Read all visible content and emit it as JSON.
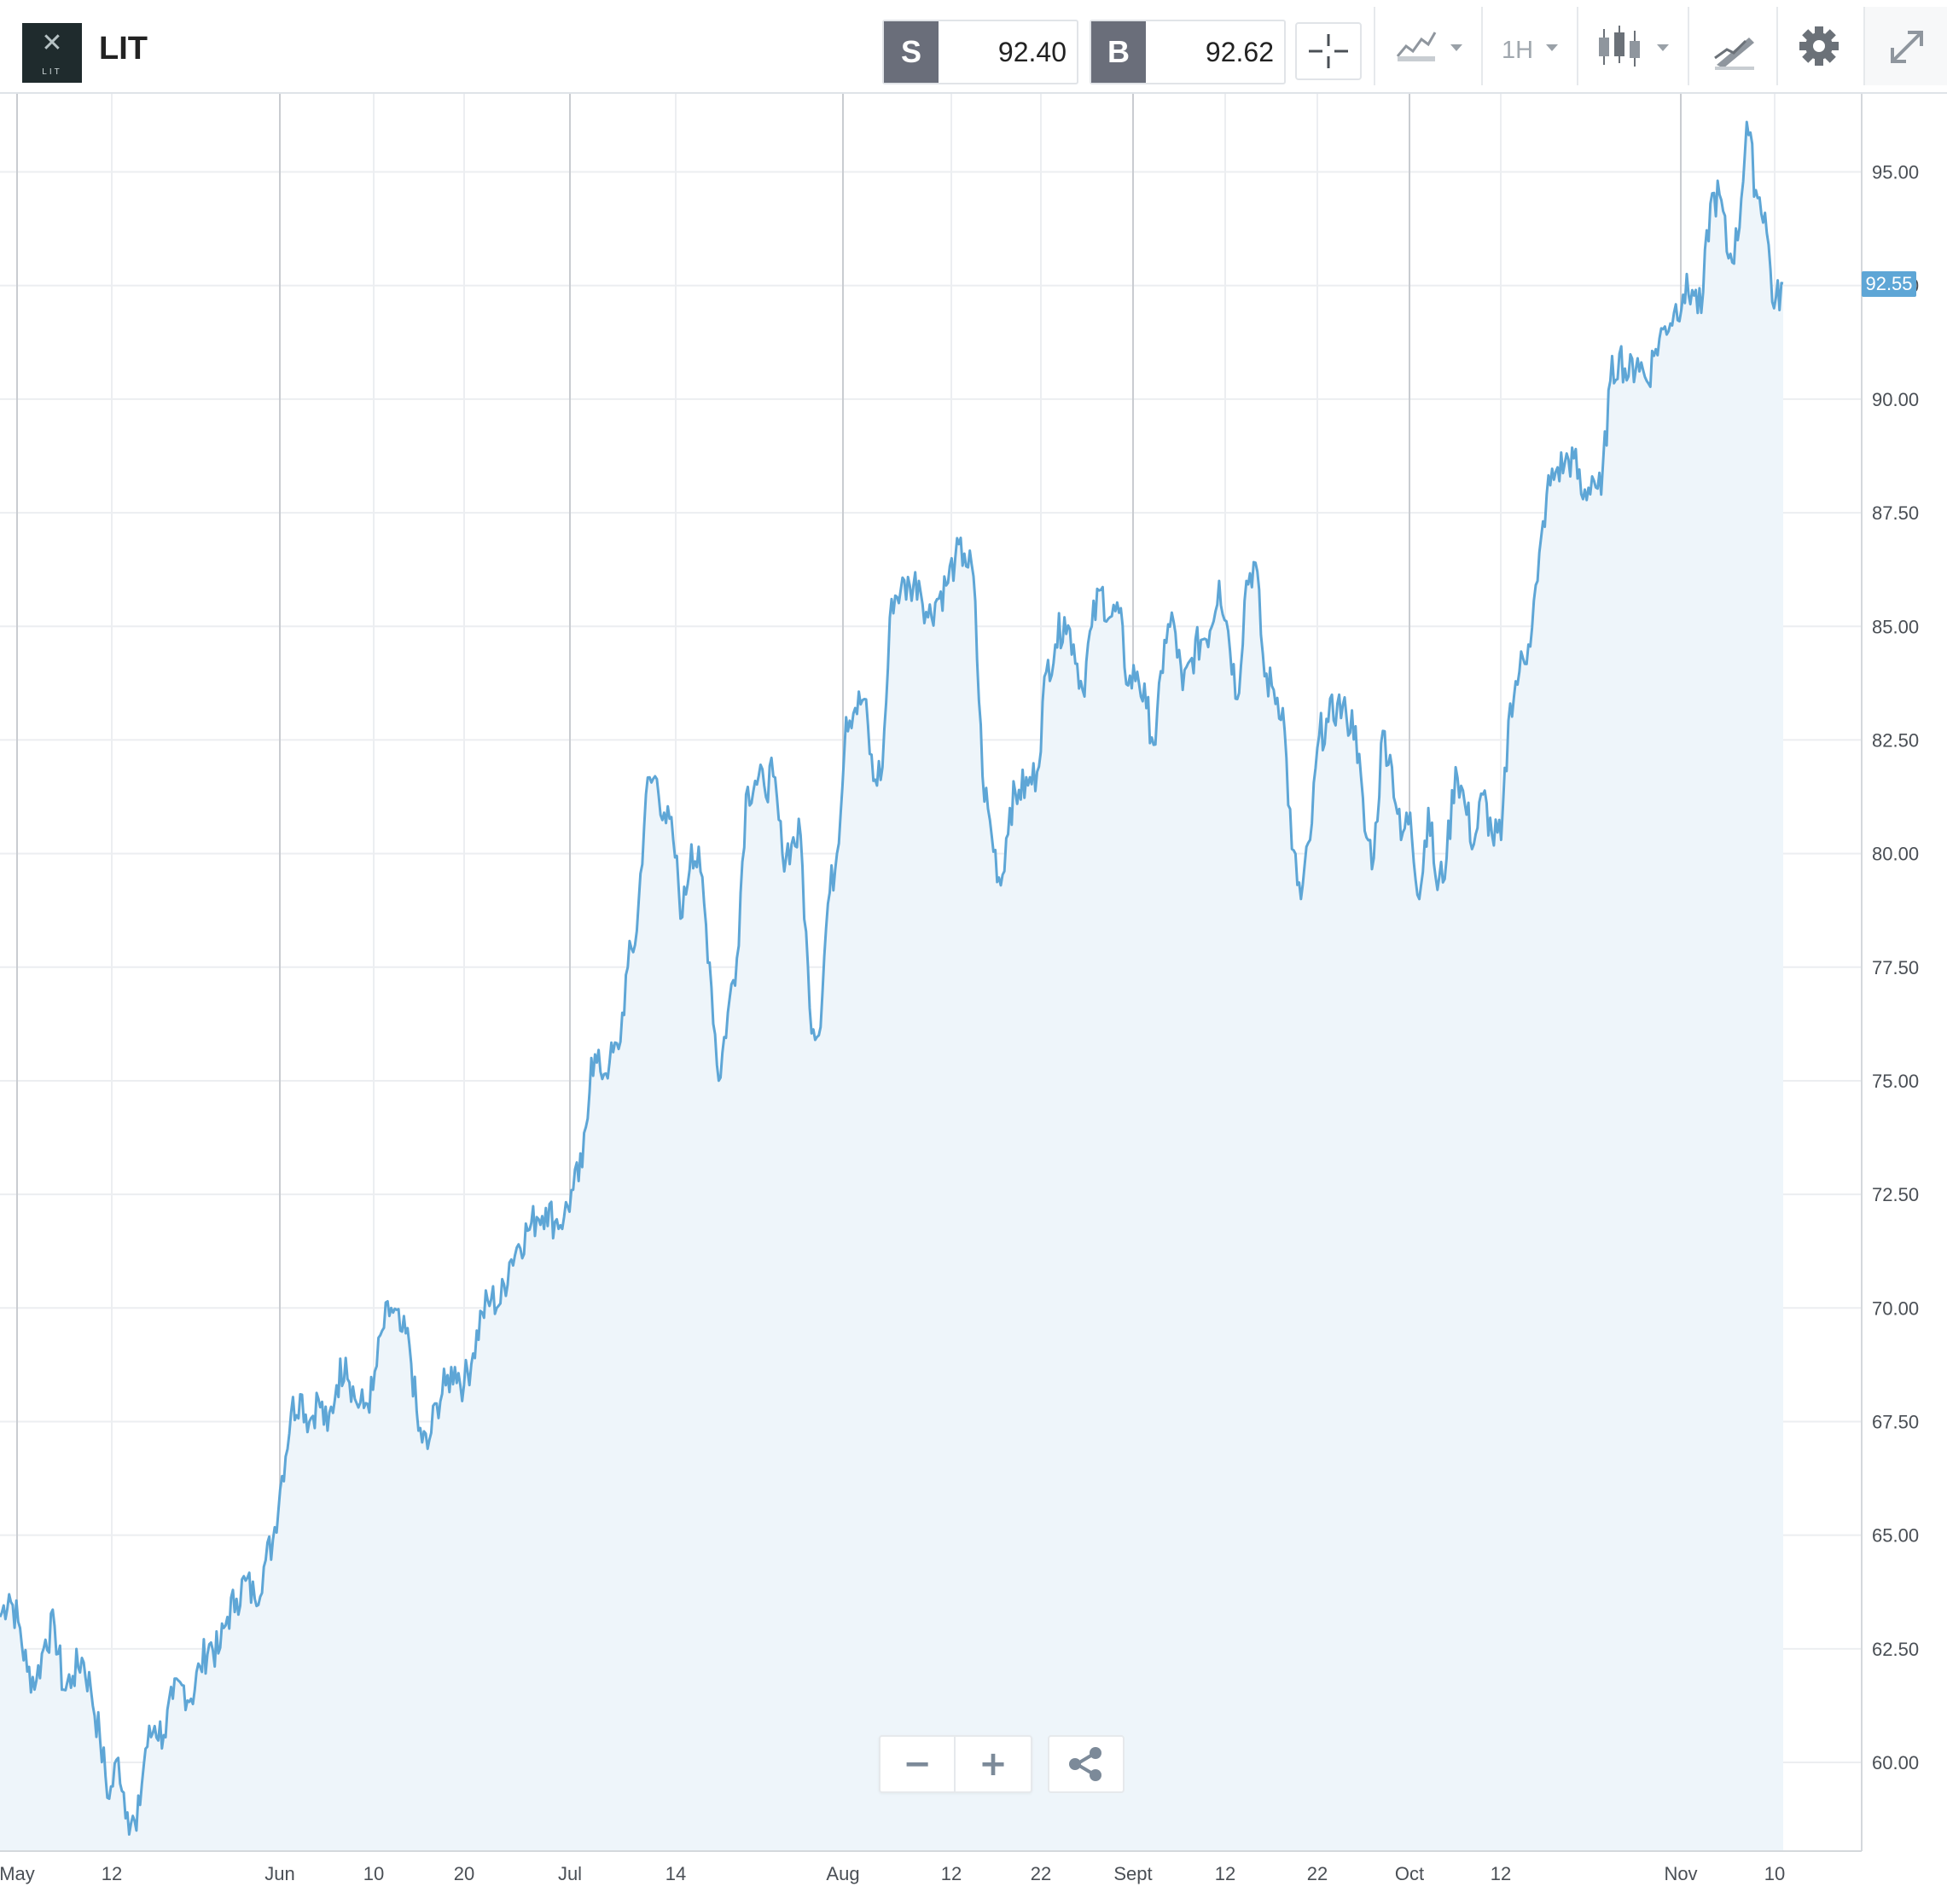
{
  "header": {
    "logo_text": "LIT",
    "symbol": "LIT",
    "sell": {
      "label": "S",
      "price": "92.40"
    },
    "buy": {
      "label": "B",
      "price": "92.62"
    },
    "interval": "1H",
    "icons": [
      "crosshair-icon",
      "line-chart-icon",
      "candlestick-icon",
      "drawing-tool-icon",
      "gear-icon",
      "expand-icon"
    ]
  },
  "chart": {
    "last_price": "92.55",
    "colors": {
      "line": "#5ea6d6",
      "fill": "#eef5fa",
      "grid": "#eceef1",
      "vgrid_major": "#c9ccd1",
      "tag": "#5ea6d6"
    }
  },
  "controls": {
    "zoom_out": "−",
    "zoom_in": "+"
  },
  "chart_data": {
    "type": "area",
    "title": "",
    "series": [
      {
        "name": "",
        "values": []
      }
    ],
    "y_ticks": [
      "60.00",
      "62.50",
      "65.00",
      "67.50",
      "70.00",
      "72.50",
      "75.00",
      "77.50",
      "80.00",
      "82.50",
      "85.00",
      "87.50",
      "90.00",
      "92.50",
      "95.00"
    ],
    "x_ticks": [
      "May",
      "12",
      "Jun",
      "10",
      "20",
      "Jul",
      "14",
      "Aug",
      "12",
      "22",
      "Sept",
      "12",
      "22",
      "Oct",
      "12",
      "Nov",
      "10"
    ],
    "ylim": [
      58.0,
      96.5
    ],
    "points": [
      [
        "Apr 30",
        63.2
      ],
      [
        "May 1",
        63.7
      ],
      [
        "May 2",
        63.1
      ],
      [
        "May 3",
        62.0
      ],
      [
        "May 4",
        61.8
      ],
      [
        "May 5",
        62.7
      ],
      [
        "May 6",
        63.0
      ],
      [
        "May 7",
        61.6
      ],
      [
        "May 8",
        61.9
      ],
      [
        "May 9",
        62.3
      ],
      [
        "May 10",
        61.6
      ],
      [
        "May 11",
        60.5
      ],
      [
        "May 12",
        59.2
      ],
      [
        "May 13",
        60.1
      ],
      [
        "May 14",
        58.9
      ],
      [
        "May 15",
        58.5
      ],
      [
        "May 16",
        60.3
      ],
      [
        "May 17",
        60.8
      ],
      [
        "May 18",
        60.6
      ],
      [
        "May 19",
        61.4
      ],
      [
        "May 20",
        61.7
      ],
      [
        "May 21",
        61.4
      ],
      [
        "May 22",
        62.1
      ],
      [
        "May 23",
        62.6
      ],
      [
        "May 24",
        62.4
      ],
      [
        "May 25",
        63.2
      ],
      [
        "May 26",
        63.6
      ],
      [
        "May 27",
        64.0
      ],
      [
        "May 28",
        63.6
      ],
      [
        "May 29",
        64.3
      ],
      [
        "May 30",
        64.9
      ],
      [
        "May 31",
        66.3
      ],
      [
        "Jun 1",
        67.7
      ],
      [
        "Jun 2",
        68.1
      ],
      [
        "Jun 3",
        67.5
      ],
      [
        "Jun 4",
        68.0
      ],
      [
        "Jun 5",
        67.3
      ],
      [
        "Jun 6",
        68.3
      ],
      [
        "Jun 7",
        68.9
      ],
      [
        "Jun 8",
        68.0
      ],
      [
        "Jun 9",
        67.8
      ],
      [
        "Jun 10",
        68.2
      ],
      [
        "Jun 11",
        69.5
      ],
      [
        "Jun 12",
        70.0
      ],
      [
        "Jun 13",
        69.5
      ],
      [
        "Jun 14",
        69.2
      ],
      [
        "Jun 15",
        67.3
      ],
      [
        "Jun 16",
        66.9
      ],
      [
        "Jun 17",
        67.9
      ],
      [
        "Jun 18",
        68.3
      ],
      [
        "Jun 19",
        68.7
      ],
      [
        "Jun 20",
        68.3
      ],
      [
        "Jun 21",
        69.0
      ],
      [
        "Jun 22",
        69.9
      ],
      [
        "Jun 23",
        70.2
      ],
      [
        "Jun 24",
        70.1
      ],
      [
        "Jun 25",
        71.0
      ],
      [
        "Jun 26",
        71.4
      ],
      [
        "Jun 27",
        71.7
      ],
      [
        "Jun 28",
        72.0
      ],
      [
        "Jun 29",
        72.2
      ],
      [
        "Jun 30",
        71.9
      ],
      [
        "Jul 1",
        72.0
      ],
      [
        "Jul 2",
        72.6
      ],
      [
        "Jul 3",
        73.1
      ],
      [
        "Jul 4",
        75.5
      ],
      [
        "Jul 5",
        75.2
      ],
      [
        "Jul 6",
        75.4
      ],
      [
        "Jul 7",
        75.7
      ],
      [
        "Jul 8",
        77.5
      ],
      [
        "Jul 9",
        78.3
      ],
      [
        "Jul 10",
        81.3
      ],
      [
        "Jul 11",
        81.7
      ],
      [
        "Jul 12",
        80.9
      ],
      [
        "Jul 13",
        80.3
      ],
      [
        "Jul 14",
        78.6
      ],
      [
        "Jul 15",
        80.2
      ],
      [
        "Jul 16",
        79.6
      ],
      [
        "Jul 17",
        77.6
      ],
      [
        "Jul 18",
        75.0
      ],
      [
        "Jul 19",
        76.5
      ],
      [
        "Jul 20",
        77.7
      ],
      [
        "Jul 21",
        81.3
      ],
      [
        "Jul 22",
        81.6
      ],
      [
        "Jul 23",
        81.5
      ],
      [
        "Jul 24",
        81.7
      ],
      [
        "Jul 25",
        80.0
      ],
      [
        "Jul 26",
        80.2
      ],
      [
        "Jul 27",
        80.4
      ],
      [
        "Jul 28",
        76.6
      ],
      [
        "Jul 29",
        76.0
      ],
      [
        "Jul 30",
        78.9
      ],
      [
        "Jul 31",
        80.0
      ],
      [
        "Aug 1",
        83.0
      ],
      [
        "Aug 2",
        83.2
      ],
      [
        "Aug 3",
        83.4
      ],
      [
        "Aug 4",
        81.6
      ],
      [
        "Aug 5",
        81.9
      ],
      [
        "Aug 6",
        85.6
      ],
      [
        "Aug 7",
        85.8
      ],
      [
        "Aug 8",
        85.9
      ],
      [
        "Aug 9",
        86.0
      ],
      [
        "Aug 10",
        85.2
      ],
      [
        "Aug 11",
        85.6
      ],
      [
        "Aug 12",
        85.9
      ],
      [
        "Aug 13",
        86.5
      ],
      [
        "Aug 14",
        86.6
      ],
      [
        "Aug 15",
        86.1
      ],
      [
        "Aug 16",
        81.7
      ],
      [
        "Aug 17",
        80.4
      ],
      [
        "Aug 18",
        79.3
      ],
      [
        "Aug 19",
        81.0
      ],
      [
        "Aug 20",
        81.4
      ],
      [
        "Aug 21",
        81.5
      ],
      [
        "Aug 22",
        81.8
      ],
      [
        "Aug 23",
        84.0
      ],
      [
        "Aug 24",
        84.6
      ],
      [
        "Aug 25",
        85.2
      ],
      [
        "Aug 26",
        84.6
      ],
      [
        "Aug 27",
        83.6
      ],
      [
        "Aug 28",
        85.0
      ],
      [
        "Aug 29",
        85.8
      ],
      [
        "Aug 30",
        85.2
      ],
      [
        "Aug 31",
        85.3
      ],
      [
        "Sept 1",
        83.7
      ],
      [
        "Sept 2",
        84.0
      ],
      [
        "Sept 3",
        83.2
      ],
      [
        "Sept 4",
        82.4
      ],
      [
        "Sept 5",
        84.7
      ],
      [
        "Sept 6",
        85.1
      ],
      [
        "Sept 7",
        83.6
      ],
      [
        "Sept 8",
        84.3
      ],
      [
        "Sept 9",
        84.7
      ],
      [
        "Sept 10",
        84.9
      ],
      [
        "Sept 11",
        86.0
      ],
      [
        "Sept 12",
        84.9
      ],
      [
        "Sept 13",
        83.4
      ],
      [
        "Sept 14",
        86.0
      ],
      [
        "Sept 15",
        86.4
      ],
      [
        "Sept 16",
        83.9
      ],
      [
        "Sept 17",
        83.6
      ],
      [
        "Sept 18",
        83.2
      ],
      [
        "Sept 19",
        80.1
      ],
      [
        "Sept 20",
        79.0
      ],
      [
        "Sept 21",
        80.3
      ],
      [
        "Sept 22",
        82.6
      ],
      [
        "Sept 23",
        82.9
      ],
      [
        "Sept 24",
        83.3
      ],
      [
        "Sept 25",
        83.0
      ],
      [
        "Sept 26",
        82.8
      ],
      [
        "Sept 27",
        80.5
      ],
      [
        "Sept 28",
        79.9
      ],
      [
        "Sept 29",
        82.7
      ],
      [
        "Sept 30",
        81.9
      ],
      [
        "Oct 1",
        80.3
      ],
      [
        "Oct 2",
        80.9
      ],
      [
        "Oct 3",
        79.0
      ],
      [
        "Oct 4",
        81.0
      ],
      [
        "Oct 5",
        79.2
      ],
      [
        "Oct 6",
        79.9
      ],
      [
        "Oct 7",
        81.9
      ],
      [
        "Oct 8",
        81.1
      ],
      [
        "Oct 9",
        80.2
      ],
      [
        "Oct 10",
        81.3
      ],
      [
        "Oct 11",
        80.4
      ],
      [
        "Oct 12",
        80.3
      ],
      [
        "Oct 13",
        83.3
      ],
      [
        "Oct 14",
        84.0
      ],
      [
        "Oct 15",
        84.6
      ],
      [
        "Oct 16",
        86.0
      ],
      [
        "Oct 17",
        87.9
      ],
      [
        "Oct 18",
        88.4
      ],
      [
        "Oct 19",
        88.6
      ],
      [
        "Oct 20",
        88.7
      ],
      [
        "Oct 21",
        87.8
      ],
      [
        "Oct 22",
        88.3
      ],
      [
        "Oct 23",
        87.9
      ],
      [
        "Oct 24",
        90.4
      ],
      [
        "Oct 25",
        91.0
      ],
      [
        "Oct 26",
        90.5
      ],
      [
        "Oct 27",
        90.9
      ],
      [
        "Oct 28",
        90.4
      ],
      [
        "Oct 29",
        91.1
      ],
      [
        "Oct 30",
        91.6
      ],
      [
        "Oct 31",
        91.9
      ],
      [
        "Nov 1",
        92.3
      ],
      [
        "Nov 2",
        92.4
      ],
      [
        "Nov 3",
        91.9
      ],
      [
        "Nov 4",
        94.3
      ],
      [
        "Nov 5",
        94.5
      ],
      [
        "Nov 6",
        93.1
      ],
      [
        "Nov 7",
        93.5
      ],
      [
        "Nov 8",
        96.1
      ],
      [
        "Nov 9",
        94.6
      ],
      [
        "Nov 10",
        94.1
      ],
      [
        "Nov 11",
        92.0
      ],
      [
        "Nov 11b",
        92.55
      ]
    ]
  }
}
